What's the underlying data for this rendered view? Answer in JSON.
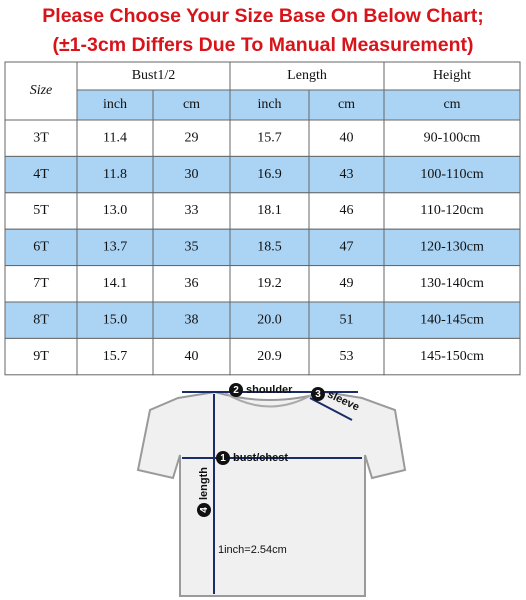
{
  "header": {
    "lines": [
      "Please Choose Your Size Base On Below Chart;",
      "(±1-3cm Differs Due To Manual Measurement)"
    ]
  },
  "table": {
    "corner": "Size",
    "groups": [
      "Bust1/2",
      "Length",
      "Height"
    ],
    "subheaders": [
      "inch",
      "cm",
      "inch",
      "cm",
      "cm"
    ],
    "rows": [
      [
        "3T",
        "11.4",
        "29",
        "15.7",
        "40",
        "90-100cm"
      ],
      [
        "4T",
        "11.8",
        "30",
        "16.9",
        "43",
        "100-110cm"
      ],
      [
        "5T",
        "13.0",
        "33",
        "18.1",
        "46",
        "110-120cm"
      ],
      [
        "6T",
        "13.7",
        "35",
        "18.5",
        "47",
        "120-130cm"
      ],
      [
        "7T",
        "14.1",
        "36",
        "19.2",
        "49",
        "130-140cm"
      ],
      [
        "8T",
        "15.0",
        "38",
        "20.0",
        "51",
        "140-145cm"
      ],
      [
        "9T",
        "15.7",
        "40",
        "20.9",
        "53",
        "145-150cm"
      ]
    ]
  },
  "diagram": {
    "labels": [
      {
        "number": "2",
        "text": "shoulder"
      },
      {
        "number": "3",
        "text": "sleeve"
      },
      {
        "number": "1",
        "text": "bust/chest"
      },
      {
        "number": "4",
        "text": "length"
      }
    ],
    "note": "1inch=2.54cm"
  }
}
